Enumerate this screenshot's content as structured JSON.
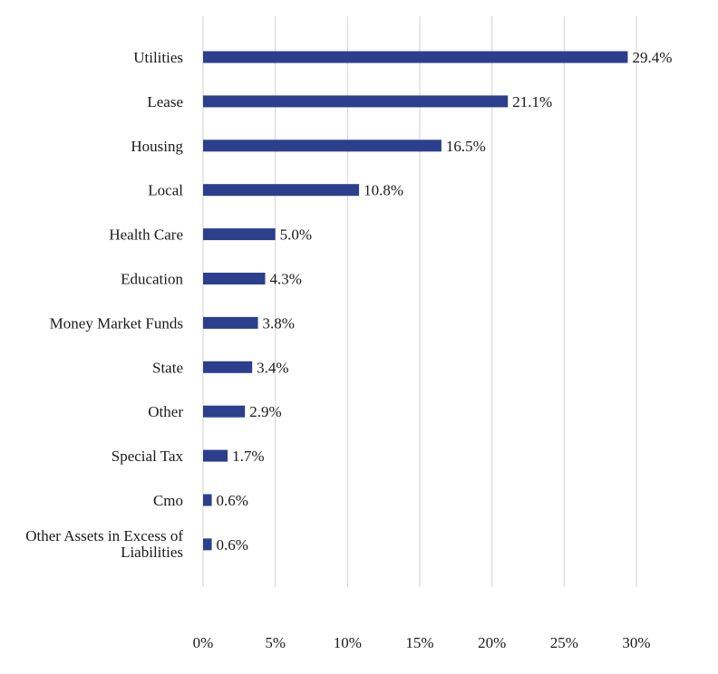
{
  "chart_data": {
    "type": "bar",
    "orientation": "horizontal",
    "categories": [
      "Utilities",
      "Lease",
      "Housing",
      "Local",
      "Health Care",
      "Education",
      "Money Market Funds",
      "State",
      "Other",
      "Special Tax",
      "Cmo",
      "Other Assets in Excess of Liabilities"
    ],
    "category_lines": [
      [
        "Utilities"
      ],
      [
        "Lease"
      ],
      [
        "Housing"
      ],
      [
        "Local"
      ],
      [
        "Health Care"
      ],
      [
        "Education"
      ],
      [
        "Money Market Funds"
      ],
      [
        "State"
      ],
      [
        "Other"
      ],
      [
        "Special Tax"
      ],
      [
        "Cmo"
      ],
      [
        "Other Assets in Excess of",
        "Liabilities"
      ]
    ],
    "values": [
      29.4,
      21.1,
      16.5,
      10.8,
      5.0,
      4.3,
      3.8,
      3.4,
      2.9,
      1.7,
      0.6,
      0.6
    ],
    "data_labels": [
      "29.4%",
      "21.1%",
      "16.5%",
      "10.8%",
      "5.0%",
      "4.3%",
      "3.8%",
      "3.4%",
      "2.9%",
      "1.7%",
      "0.6%",
      "0.6%"
    ],
    "xlim": [
      0,
      30
    ],
    "ticks": [
      0,
      5,
      10,
      15,
      20,
      25,
      30
    ],
    "tick_labels": [
      "0%",
      "5%",
      "10%",
      "15%",
      "20%",
      "25%",
      "30%"
    ],
    "title": "",
    "xlabel": "",
    "ylabel": "",
    "grid": "vertical",
    "legend": "none",
    "bar_color": "#2b3f8c",
    "grid_color": "#d9d9d9"
  }
}
